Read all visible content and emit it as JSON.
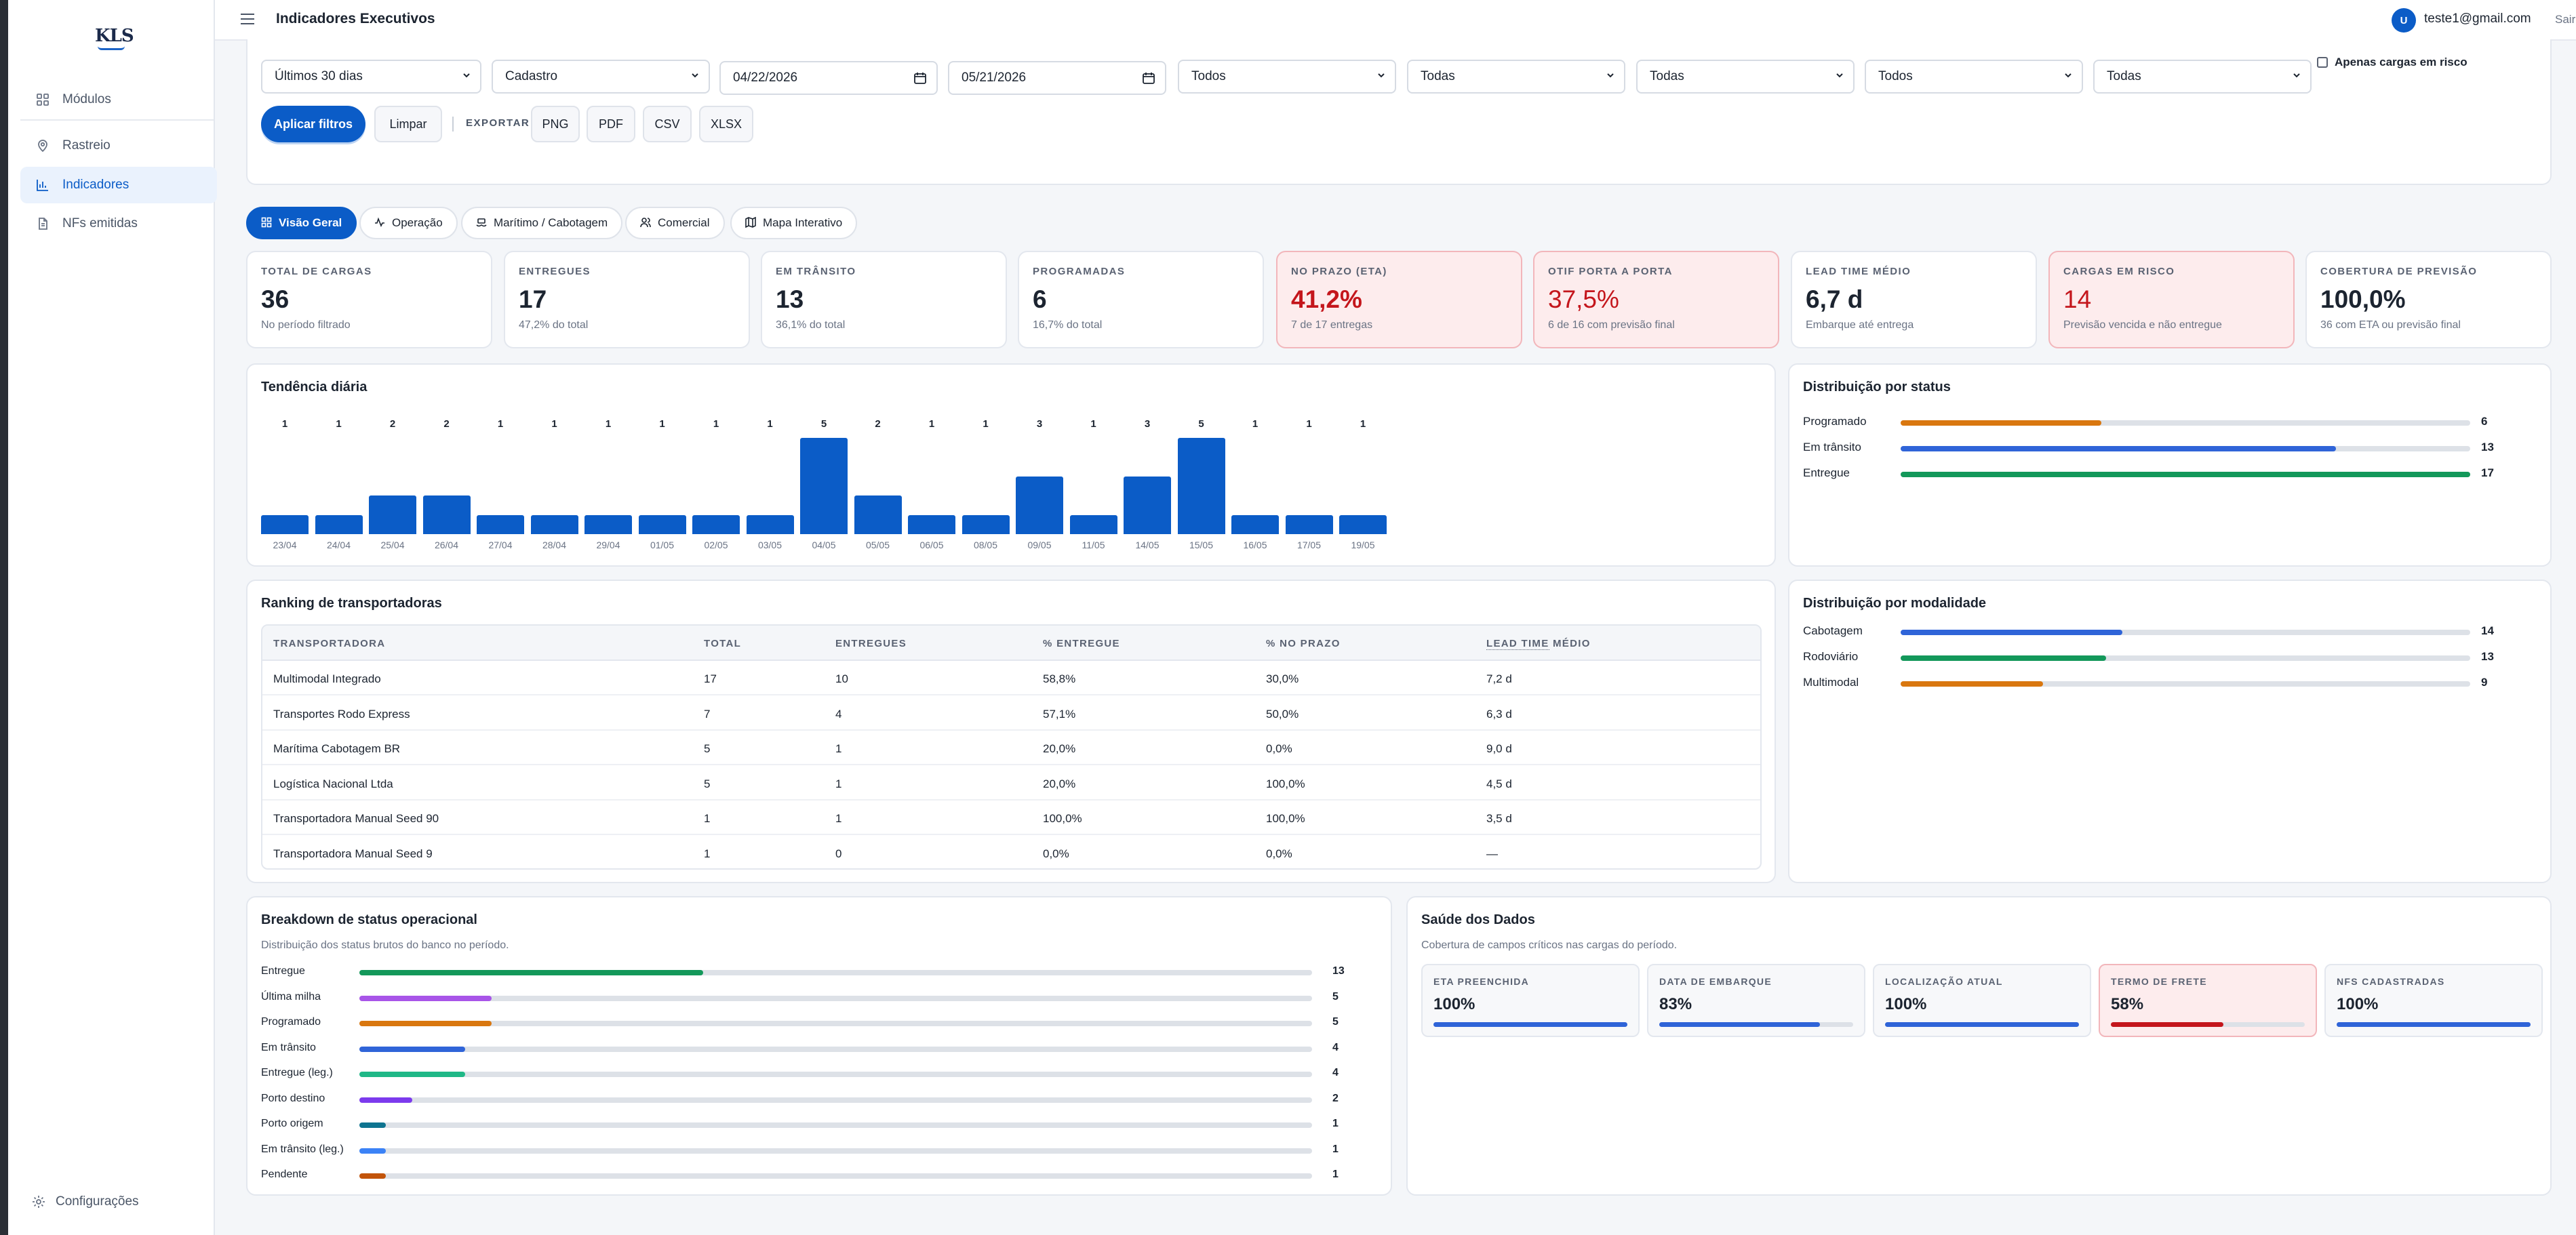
{
  "app": {
    "logo_text": "KLS",
    "page_title": "Indicadores Executivos"
  },
  "user": {
    "avatar_letter": "U",
    "email": "teste1@gmail.com",
    "logout": "Sair"
  },
  "sidebar": {
    "items": [
      {
        "label": "Módulos",
        "icon": "grid-icon"
      },
      {
        "label": "Rastreio",
        "icon": "map-pin-icon"
      },
      {
        "label": "Indicadores",
        "icon": "bar-chart-icon",
        "active": true
      },
      {
        "label": "NFs emitidas",
        "icon": "document-icon"
      }
    ],
    "settings": "Configurações"
  },
  "filters": {
    "period": "Últimos 30 dias",
    "source": "Cadastro",
    "date_from": "04/22/2026",
    "date_to": "05/21/2026",
    "f1": "Todos",
    "f2": "Todas",
    "f3": "Todas",
    "f4": "Todos",
    "f5": "Todas",
    "risk_only": "Apenas cargas em risco",
    "apply": "Aplicar filtros",
    "clear": "Limpar",
    "export_label": "EXPORTAR",
    "exports": [
      "PNG",
      "PDF",
      "CSV",
      "XLSX"
    ]
  },
  "tabs": [
    {
      "label": "Visão Geral",
      "icon": "grid-icon",
      "active": true
    },
    {
      "label": "Operação",
      "icon": "activity-icon"
    },
    {
      "label": "Marítimo / Cabotagem",
      "icon": "ship-icon"
    },
    {
      "label": "Comercial",
      "icon": "users-icon"
    },
    {
      "label": "Mapa Interativo",
      "icon": "map-icon"
    }
  ],
  "kpis": [
    {
      "label": "TOTAL DE CARGAS",
      "value": "36",
      "sub": "No período filtrado"
    },
    {
      "label": "ENTREGUES",
      "value": "17",
      "sub": "47,2% do total"
    },
    {
      "label": "EM TRÂNSITO",
      "value": "13",
      "sub": "36,1% do total"
    },
    {
      "label": "PROGRAMADAS",
      "value": "6",
      "sub": "16,7% do total"
    },
    {
      "label": "NO PRAZO (ETA)",
      "value": "41,2%",
      "sub": "7 de 17 entregas",
      "danger": true
    },
    {
      "label": "OTIF PORTA A PORTA",
      "value": "37,5%",
      "sub": "6 de 16 com previsão final",
      "danger": true
    },
    {
      "label": "LEAD TIME MÉDIO",
      "value": "6,7 d",
      "sub": "Embarque até entrega"
    },
    {
      "label": "CARGAS EM RISCO",
      "value": "14",
      "sub": "Previsão vencida e não entregue",
      "danger": true
    },
    {
      "label": "COBERTURA DE PREVISÃO",
      "value": "100,0%",
      "sub": "36 com ETA ou previsão final"
    }
  ],
  "chart_data": {
    "type": "bar",
    "title": "Tendência diária",
    "categories": [
      "23/04",
      "24/04",
      "25/04",
      "26/04",
      "27/04",
      "28/04",
      "29/04",
      "01/05",
      "02/05",
      "03/05",
      "04/05",
      "05/05",
      "06/05",
      "08/05",
      "09/05",
      "11/05",
      "14/05",
      "15/05",
      "16/05",
      "17/05",
      "19/05"
    ],
    "values": [
      1,
      1,
      2,
      2,
      1,
      1,
      1,
      1,
      1,
      1,
      5,
      2,
      1,
      1,
      3,
      1,
      3,
      5,
      1,
      1,
      1
    ],
    "ylim": [
      0,
      5
    ],
    "grid": false,
    "color": "#0b5cc7"
  },
  "status_dist": {
    "title": "Distribuição por status",
    "max": 17,
    "items": [
      {
        "name": "Programado",
        "value": 6,
        "color": "#d9770f"
      },
      {
        "name": "Em trânsito",
        "value": 13,
        "color": "#2f64d8"
      },
      {
        "name": "Entregue",
        "value": 17,
        "color": "#13985a"
      }
    ]
  },
  "mode_dist": {
    "title": "Distribuição por modalidade",
    "max": 36,
    "items": [
      {
        "name": "Cabotagem",
        "value": 14,
        "color": "#2f64d8"
      },
      {
        "name": "Rodoviário",
        "value": 13,
        "color": "#13985a"
      },
      {
        "name": "Multimodal",
        "value": 9,
        "color": "#d9770f"
      }
    ]
  },
  "ranking": {
    "title": "Ranking de transportadoras",
    "headers": [
      "TRANSPORTADORA",
      "TOTAL",
      "ENTREGUES",
      "% ENTREGUE",
      "% NO PRAZO",
      "LEAD TIME",
      "MÉDIO"
    ],
    "rows": [
      [
        "Multimodal Integrado",
        "17",
        "10",
        "58,8%",
        "30,0%",
        "7,2 d"
      ],
      [
        "Transportes Rodo Express",
        "7",
        "4",
        "57,1%",
        "50,0%",
        "6,3 d"
      ],
      [
        "Marítima Cabotagem BR",
        "5",
        "1",
        "20,0%",
        "0,0%",
        "9,0 d"
      ],
      [
        "Logística Nacional Ltda",
        "5",
        "1",
        "20,0%",
        "100,0%",
        "4,5 d"
      ],
      [
        "Transportadora Manual Seed 90",
        "1",
        "1",
        "100,0%",
        "100,0%",
        "3,5 d"
      ],
      [
        "Transportadora Manual Seed 9",
        "1",
        "0",
        "0,0%",
        "0,0%",
        "—"
      ]
    ]
  },
  "breakdown": {
    "title": "Breakdown de status operacional",
    "subtitle": "Distribuição dos status brutos do banco no período.",
    "max": 36,
    "items": [
      {
        "name": "Entregue",
        "value": 13,
        "color": "#13985a"
      },
      {
        "name": "Última milha",
        "value": 5,
        "color": "#a855e8"
      },
      {
        "name": "Programado",
        "value": 5,
        "color": "#d9770f"
      },
      {
        "name": "Em trânsito",
        "value": 4,
        "color": "#2f64d8"
      },
      {
        "name": "Entregue (leg.)",
        "value": 4,
        "color": "#1fb887"
      },
      {
        "name": "Porto destino",
        "value": 2,
        "color": "#7c3aed"
      },
      {
        "name": "Porto origem",
        "value": 1,
        "color": "#0e7490"
      },
      {
        "name": "Em trânsito (leg.)",
        "value": 1,
        "color": "#3b82f6"
      },
      {
        "name": "Pendente",
        "value": 1,
        "color": "#c2540a"
      }
    ]
  },
  "health": {
    "title": "Saúde dos Dados",
    "subtitle": "Cobertura de campos críticos nas cargas do período.",
    "items": [
      {
        "label": "ETA PREENCHIDA",
        "value": "100%",
        "pct": 100,
        "color": "#2f64d8"
      },
      {
        "label": "DATA DE EMBARQUE",
        "value": "83%",
        "pct": 83,
        "color": "#2f64d8"
      },
      {
        "label": "LOCALIZAÇÃO ATUAL",
        "value": "100%",
        "pct": 100,
        "color": "#2f64d8"
      },
      {
        "label": "TERMO DE FRETE",
        "value": "58%",
        "pct": 58,
        "color": "#c4161c",
        "danger": true
      },
      {
        "label": "NFS CADASTRADAS",
        "value": "100%",
        "pct": 100,
        "color": "#2f64d8"
      }
    ]
  }
}
